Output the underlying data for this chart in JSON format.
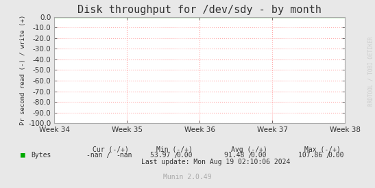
{
  "title": "Disk throughput for /dev/sdy - by month",
  "ylabel": "Pr second read (-) / write (+)",
  "bg_color": "#e8e8e8",
  "plot_bg_color": "#ffffff",
  "grid_color": "#ffaaaa",
  "border_color": "#aaaaaa",
  "ylim": [
    -100,
    0
  ],
  "yticks": [
    0,
    -10,
    -20,
    -30,
    -40,
    -50,
    -60,
    -70,
    -80,
    -90,
    -100
  ],
  "ytick_labels": [
    "0.0",
    "-10.0",
    "-20.0",
    "-30.0",
    "-40.0",
    "-50.0",
    "-60.0",
    "-70.0",
    "-80.0",
    "-90.0",
    "-100.0"
  ],
  "xtick_labels": [
    "Week 34",
    "Week 35",
    "Week 36",
    "Week 37",
    "Week 38"
  ],
  "line_color": "#00cc00",
  "watermark": "RRDTOOL / TOBI OETIKER",
  "legend_label": "Bytes",
  "legend_color": "#00aa00",
  "last_update": "Last update: Mon Aug 19 02:10:06 2024",
  "munin_version": "Munin 2.0.49",
  "title_fontsize": 11,
  "tick_fontsize": 7.5,
  "stats_fontsize": 7,
  "ylabel_fontsize": 6.5,
  "watermark_fontsize": 5.5
}
